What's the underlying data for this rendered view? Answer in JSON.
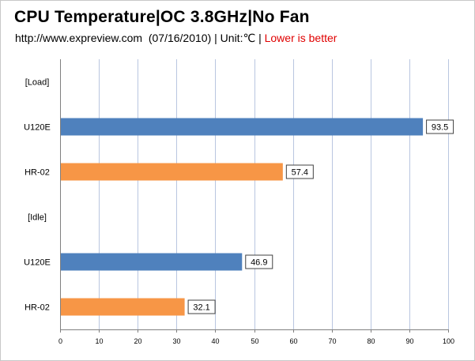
{
  "chart_data": {
    "type": "bar",
    "orientation": "horizontal",
    "title": "CPU Temperature|OC 3.8GHz|No Fan",
    "subtitle": {
      "source": "http://www.expreview.com",
      "date": "(07/16/2010)",
      "separator": "|",
      "unit": "Unit:℃",
      "note": "Lower is better"
    },
    "categories": [
      "[Load]",
      "U120E",
      "HR-02",
      "[Idle]",
      "U120E",
      "HR-02"
    ],
    "values": [
      null,
      93.5,
      57.4,
      null,
      46.9,
      32.1
    ],
    "bar_colors": [
      null,
      "#4f81bd",
      "#f79646",
      null,
      "#4f81bd",
      "#f79646"
    ],
    "xlim": [
      0,
      100
    ],
    "xticks": [
      0,
      10,
      20,
      30,
      40,
      50,
      60,
      70,
      80,
      90,
      100
    ],
    "grid": "vertical",
    "xlabel": "",
    "ylabel": ""
  },
  "colors": {
    "grid": "#b9c6e0",
    "axis": "#808080",
    "note": "#e00000"
  }
}
